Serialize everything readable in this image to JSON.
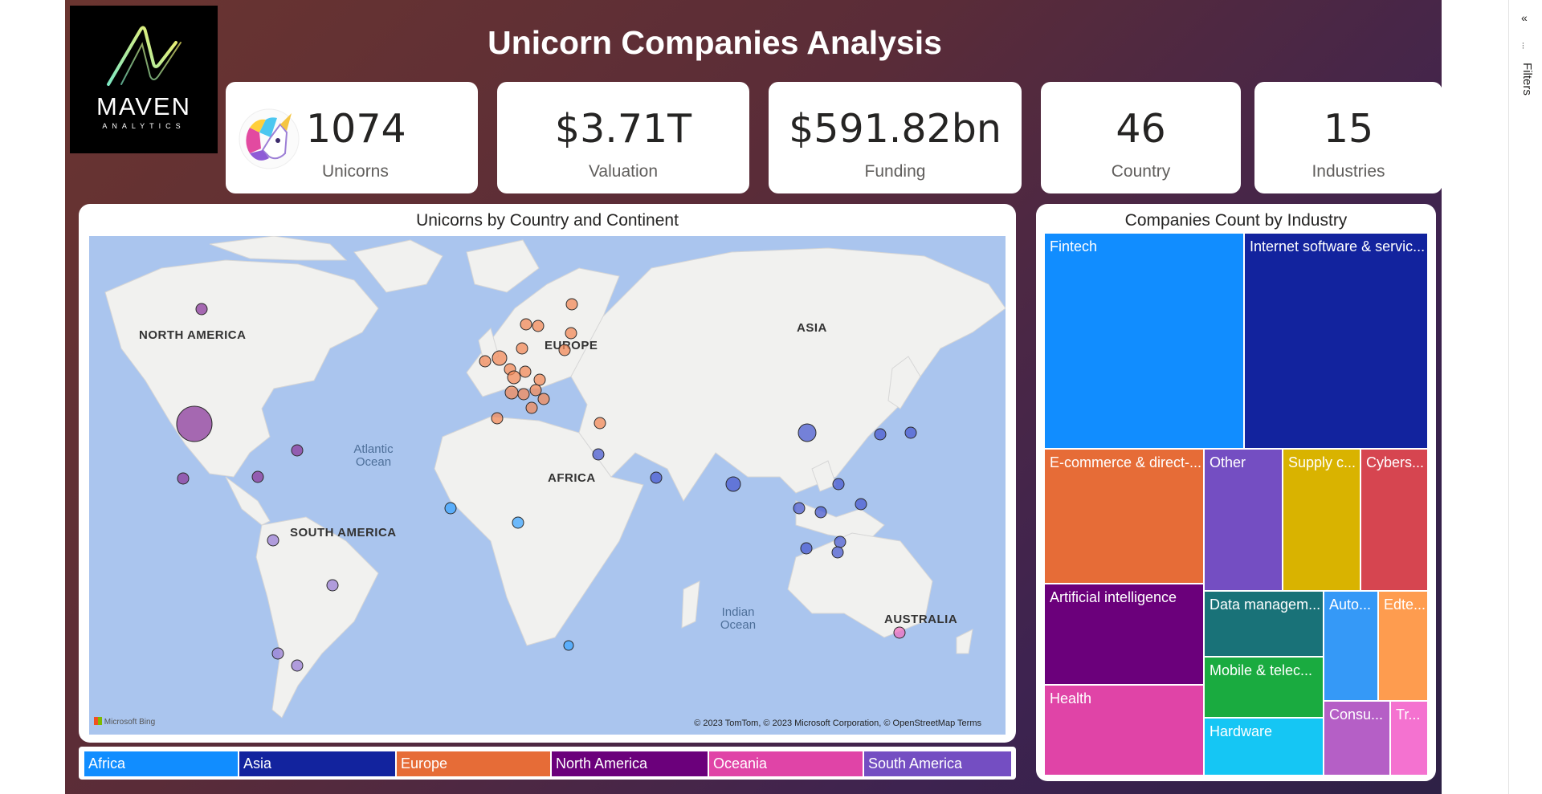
{
  "report": {
    "title": "Unicorn Companies Analysis",
    "logo": {
      "wordmark": "MAVEN",
      "sub": "ANALYTICS"
    }
  },
  "kpis": {
    "unicorns": {
      "value": "1074",
      "label": "Unicorns",
      "icon": "unicorn-icon"
    },
    "valuation": {
      "value": "$3.71T",
      "label": "Valuation"
    },
    "funding": {
      "value": "$591.82bn",
      "label": "Funding"
    },
    "country": {
      "value": "46",
      "label": "Country"
    },
    "industries": {
      "value": "15",
      "label": "Industries"
    }
  },
  "map": {
    "title": "Unicorns by Country and Continent",
    "labels": {
      "north_america": "NORTH AMERICA",
      "south_america": "SOUTH AMERICA",
      "europe": "EUROPE",
      "africa": "AFRICA",
      "asia": "ASIA",
      "australia": "AUSTRALIA",
      "atlantic": "Atlantic Ocean",
      "indian": "Indian Ocean"
    },
    "bing": "Microsoft Bing",
    "copyright": "© 2023 TomTom, © 2023 Microsoft Corporation, © OpenStreetMap  Terms"
  },
  "legend": {
    "items": [
      {
        "label": "Africa",
        "color": "#118dff"
      },
      {
        "label": "Asia",
        "color": "#12239e"
      },
      {
        "label": "Europe",
        "color": "#e66c37"
      },
      {
        "label": "North America",
        "color": "#6b007b"
      },
      {
        "label": "Oceania",
        "color": "#e044a7"
      },
      {
        "label": "South America",
        "color": "#744ec2"
      }
    ]
  },
  "treemap": {
    "title": "Companies Count by Industry",
    "tiles": [
      {
        "label": "Fintech",
        "color": "#118dff"
      },
      {
        "label": "Internet software & servic...",
        "color": "#12239e"
      },
      {
        "label": "E-commerce & direct-...",
        "color": "#e66c37"
      },
      {
        "label": "Other",
        "color": "#744ec2"
      },
      {
        "label": "Supply c...",
        "color": "#d9b300"
      },
      {
        "label": "Cybers...",
        "color": "#d64550"
      },
      {
        "label": "Artificial intelligence",
        "color": "#6b007b"
      },
      {
        "label": "Data managem...",
        "color": "#197278"
      },
      {
        "label": "Auto...",
        "color": "#3599f7"
      },
      {
        "label": "Edte...",
        "color": "#fe9c4f"
      },
      {
        "label": "Mobile & telec...",
        "color": "#1aab40"
      },
      {
        "label": "Health",
        "color": "#e044a7"
      },
      {
        "label": "Hardware",
        "color": "#15c6f4"
      },
      {
        "label": "Consu...",
        "color": "#b55fc6"
      },
      {
        "label": "Tr...",
        "color": "#f472d0"
      }
    ]
  },
  "filters_pane": {
    "label": "Filters"
  },
  "colors": {
    "accent": "#118dff",
    "background_start": "#6a3530",
    "background_end": "#2e2146"
  }
}
